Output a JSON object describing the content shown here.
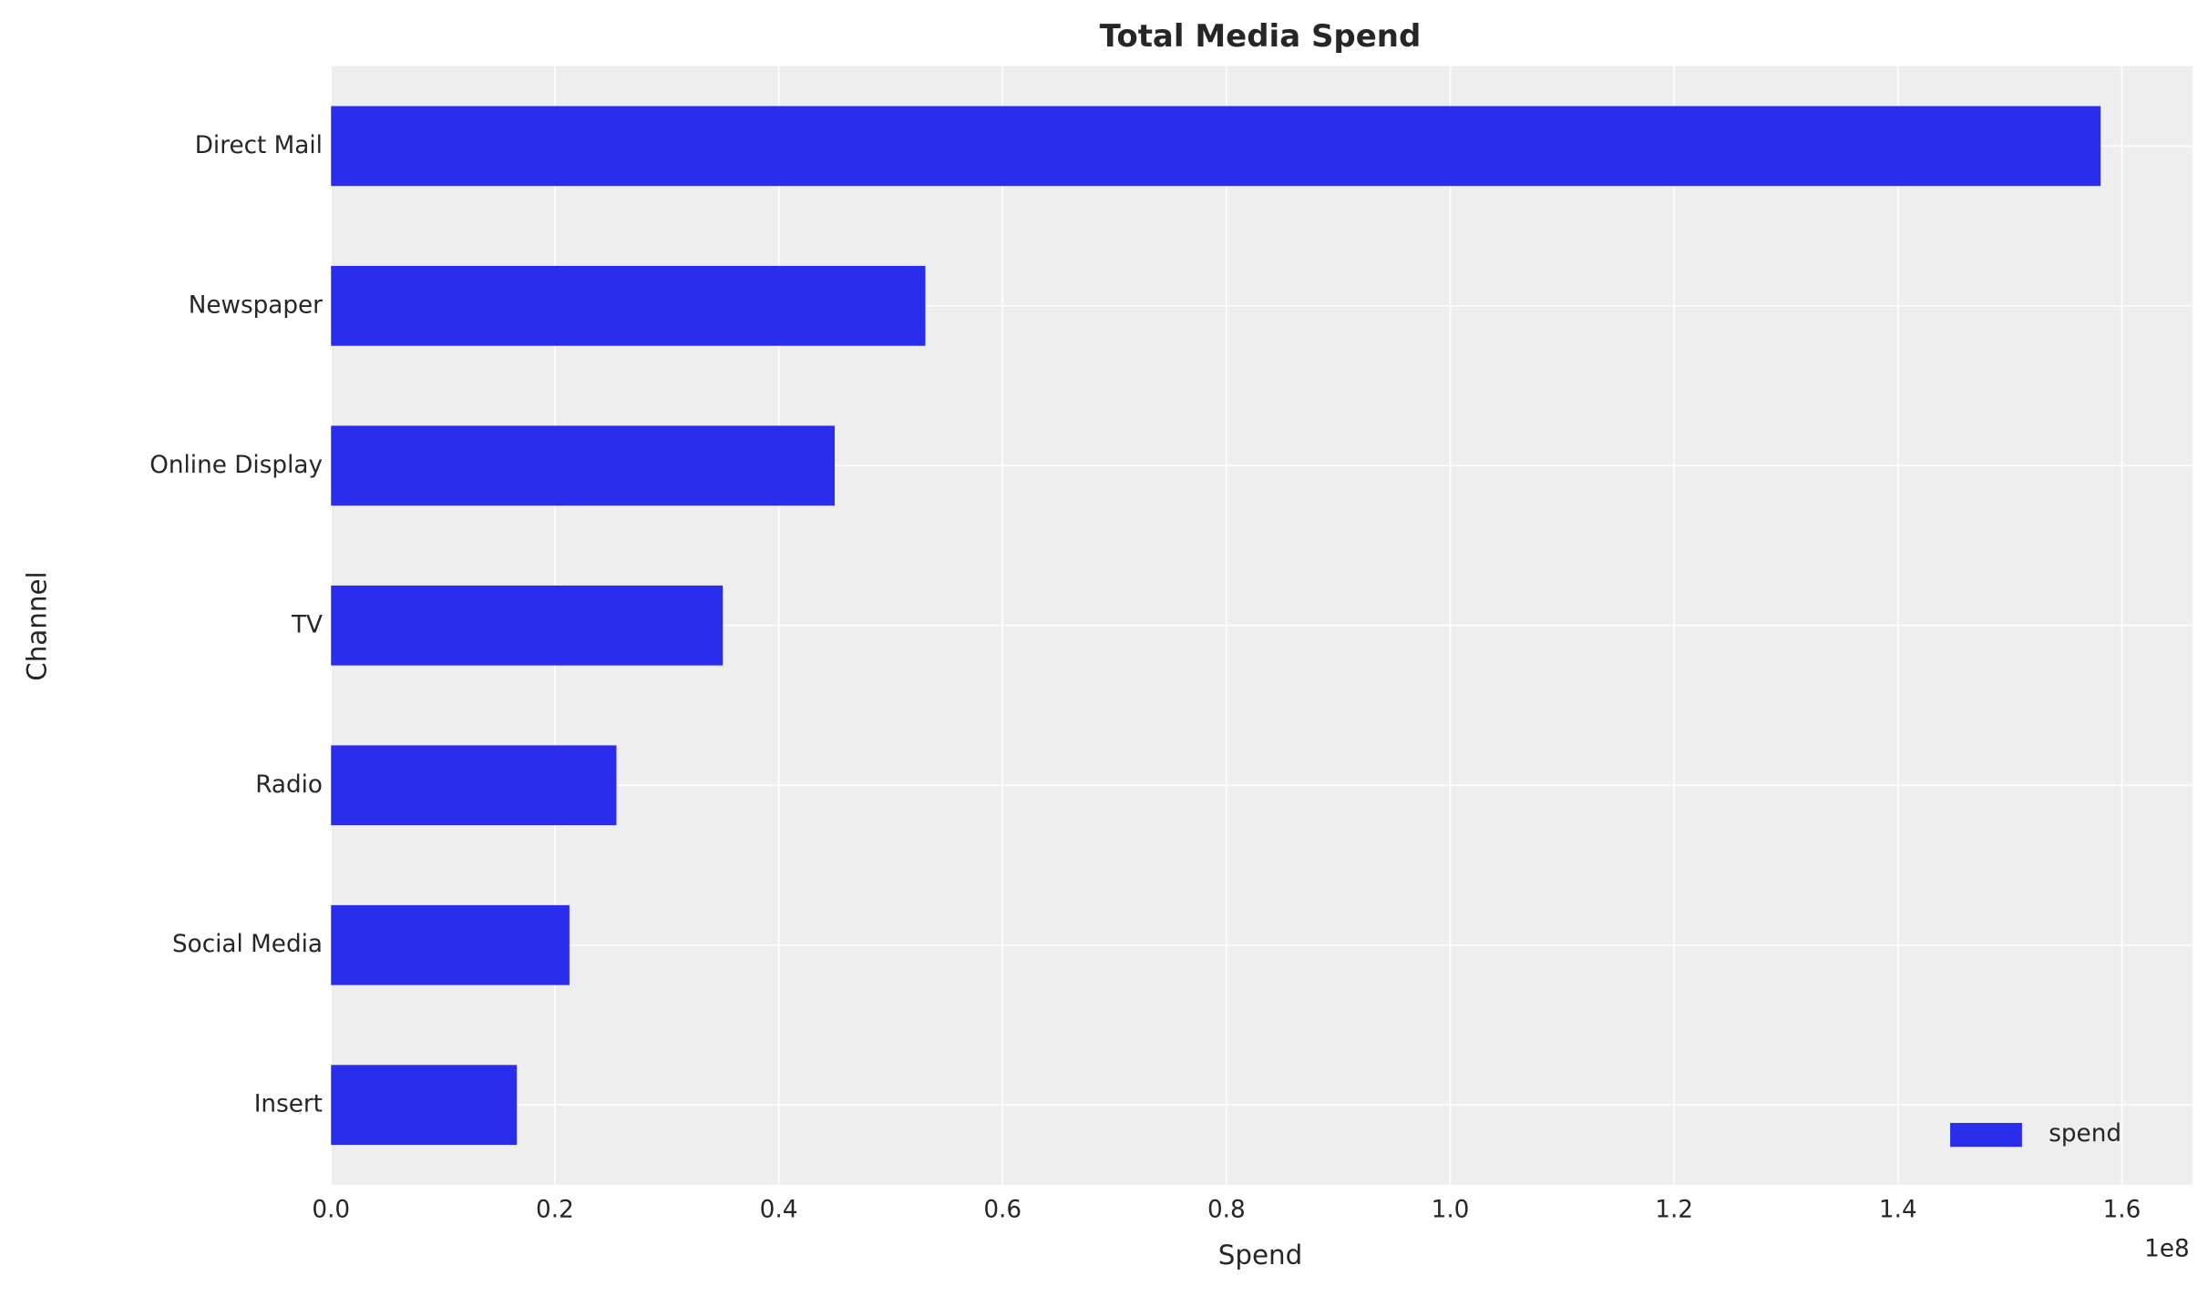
{
  "chart_data": {
    "type": "barh",
    "title": "Total Media Spend",
    "x_label": "Spend",
    "y_label": "Channel",
    "x_offset_label": "1e8",
    "categories": [
      "Direct Mail",
      "Newspaper",
      "Online Display",
      "TV",
      "Radio",
      "Social Media",
      "Insert"
    ],
    "series": [
      {
        "name": "spend",
        "color": "#2a2eec",
        "values": [
          158100000,
          53100000,
          45000000,
          35000000,
          25500000,
          21300000,
          16600000
        ]
      }
    ],
    "xlim": [
      0,
      166300000
    ],
    "xticks": [
      {
        "value": 0,
        "label": "0.0"
      },
      {
        "value": 20000000,
        "label": "0.2"
      },
      {
        "value": 40000000,
        "label": "0.4"
      },
      {
        "value": 60000000,
        "label": "0.6"
      },
      {
        "value": 80000000,
        "label": "0.8"
      },
      {
        "value": 100000000,
        "label": "1.0"
      },
      {
        "value": 120000000,
        "label": "1.2"
      },
      {
        "value": 140000000,
        "label": "1.4"
      },
      {
        "value": 160000000,
        "label": "1.6"
      }
    ],
    "grid": true,
    "legend_position": "lower right"
  }
}
